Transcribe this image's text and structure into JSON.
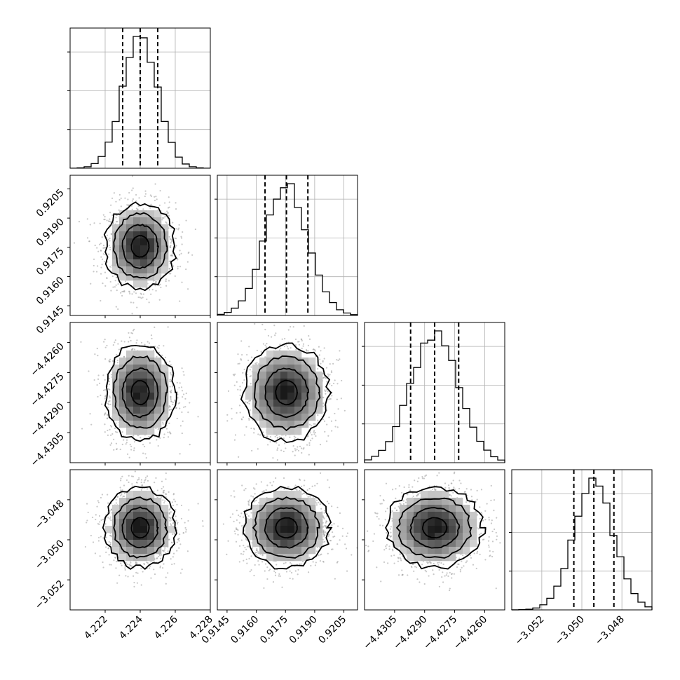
{
  "chart_data": {
    "type": "corner",
    "title": "",
    "parameters": [
      {
        "name": "",
        "center": 4.224,
        "sigma": 0.001,
        "range": [
          4.22,
          4.228
        ],
        "ticks": [
          4.222,
          4.224,
          4.226,
          4.228
        ],
        "tick_labels": [
          "4.222",
          "4.224",
          "4.226",
          "4.228"
        ],
        "quantiles": [
          4.223,
          4.224,
          4.225
        ]
      },
      {
        "name": "",
        "center": 0.91755,
        "sigma": 0.0011,
        "range": [
          0.914,
          0.9212
        ],
        "ticks": [
          0.9145,
          0.916,
          0.9175,
          0.919,
          0.9205
        ],
        "tick_labels": [
          "0.9145",
          "0.9160",
          "0.9175",
          "0.9190",
          "0.9205"
        ],
        "quantiles": [
          0.91645,
          0.91755,
          0.91865
        ]
      },
      {
        "name": "",
        "center": -4.4285,
        "sigma": 0.0012,
        "range": [
          -4.432,
          -4.425
        ],
        "ticks": [
          -4.4305,
          -4.429,
          -4.4275,
          -4.426
        ],
        "tick_labels": [
          "−4.4305",
          "−4.4290",
          "−4.4275",
          "−4.4260"
        ],
        "quantiles": [
          -4.4297,
          -4.4285,
          -4.4273
        ]
      },
      {
        "name": "",
        "center": -3.0494,
        "sigma": 0.001,
        "range": [
          -3.0535,
          -3.0465
        ],
        "ticks": [
          -3.052,
          -3.05,
          -3.048
        ],
        "tick_labels": [
          "−3.052",
          "−3.050",
          "−3.048"
        ],
        "quantiles": [
          -3.0504,
          -3.0494,
          -3.0484
        ]
      }
    ],
    "histogram_bins": 20,
    "grid": true,
    "contour_levels_sigma": [
      0.5,
      1.0,
      1.5,
      2.0
    ],
    "scatter": true,
    "colors": {
      "ink": "#000000",
      "scatter": "#9a9a9a",
      "grid": "#b0b0b0"
    }
  }
}
